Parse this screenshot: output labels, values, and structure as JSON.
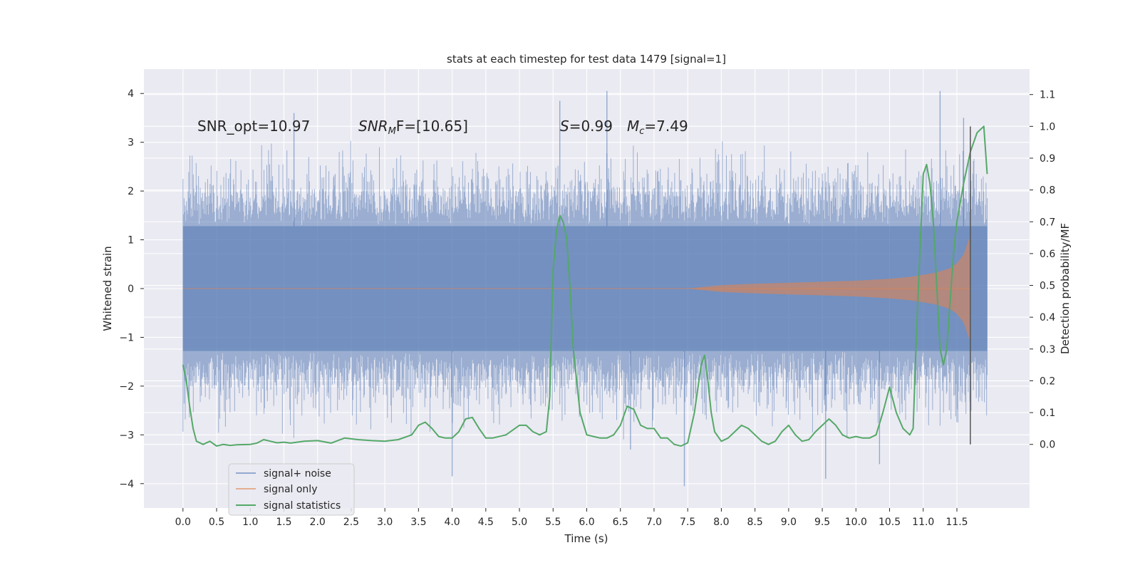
{
  "chart_data": {
    "type": "line",
    "title": "stats at each timestep for test data 1479 [signal=1]",
    "xlabel": "Time (s)",
    "ylabel": "Whitened strain",
    "ylabel_right": "Detection probability/MF",
    "xlim": [
      -0.58,
      12.58
    ],
    "ylim": [
      -4.5,
      4.5
    ],
    "ylim_right": [
      -0.2,
      1.18
    ],
    "x_ticks": [
      0.0,
      0.5,
      1.0,
      1.5,
      2.0,
      2.5,
      3.0,
      3.5,
      4.0,
      4.5,
      5.0,
      5.5,
      6.0,
      6.5,
      7.0,
      7.5,
      8.0,
      8.5,
      9.0,
      9.5,
      10.0,
      10.5,
      11.0,
      11.5
    ],
    "x_tick_labels": [
      "0.0",
      "0.5",
      "1.0",
      "1.5",
      "2.0",
      "2.5",
      "3.0",
      "3.5",
      "4.0",
      "4.5",
      "5.0",
      "5.5",
      "6.0",
      "6.5",
      "7.0",
      "7.5",
      "8.0",
      "8.5",
      "9.0",
      "9.5",
      "10.0",
      "10.5",
      "11.0",
      "11.5"
    ],
    "y_ticks": [
      -4,
      -3,
      -2,
      -1,
      0,
      1,
      2,
      3,
      4
    ],
    "y_tick_labels": [
      "−4",
      "−3",
      "−2",
      "−1",
      "0",
      "1",
      "2",
      "3",
      "4"
    ],
    "y_ticks_right": [
      0.0,
      0.1,
      0.2,
      0.3,
      0.4,
      0.5,
      0.6,
      0.7,
      0.8,
      0.9,
      1.0,
      1.1
    ],
    "y_tick_labels_right": [
      "0.0",
      "0.1",
      "0.2",
      "0.3",
      "0.4",
      "0.5",
      "0.6",
      "0.7",
      "0.8",
      "0.9",
      "1.0",
      "1.1"
    ],
    "grid": true,
    "legend_position": "lower-left",
    "annotations": {
      "snr_opt": "SNR_opt=10.97",
      "snr_mf_symbol": "SNR",
      "snr_mf_sub": "M",
      "snr_mf_rest": "F=[10.65]",
      "s_symbol": "S",
      "s_value": "=0.99",
      "mc_symbol": "M",
      "mc_sub": "c",
      "mc_value": "=7.49"
    },
    "series": [
      {
        "name": "signal+ noise",
        "color": "#4c72b0",
        "x_range": [
          0.0,
          11.95
        ],
        "envelope": {
          "core": 1.28,
          "typical_max": 2.2,
          "typical_min": -2.2,
          "peaks": [
            {
              "x": 5.6,
              "y": 3.85
            },
            {
              "x": 6.3,
              "y": 4.05
            },
            {
              "x": 11.25,
              "y": 4.05
            },
            {
              "x": 1.65,
              "y": 3.6
            },
            {
              "x": 11.6,
              "y": 3.5
            },
            {
              "x": 4.0,
              "y": -3.85
            },
            {
              "x": 7.45,
              "y": -4.05
            },
            {
              "x": 9.55,
              "y": -3.9
            },
            {
              "x": 6.65,
              "y": -3.3
            },
            {
              "x": 10.35,
              "y": -3.6
            }
          ]
        }
      },
      {
        "name": "signal only",
        "color": "#dd8452",
        "x": [
          0.0,
          7.5,
          8.0,
          8.5,
          9.0,
          9.5,
          10.0,
          10.5,
          10.8,
          11.0,
          11.2,
          11.4,
          11.5,
          11.6,
          11.65,
          11.7
        ],
        "amplitude": [
          0.0,
          0.0,
          0.07,
          0.1,
          0.12,
          0.14,
          0.16,
          0.2,
          0.24,
          0.28,
          0.33,
          0.42,
          0.52,
          0.7,
          0.9,
          1.1
        ]
      },
      {
        "name": "signal statistics",
        "color": "#55a868",
        "x": [
          0.0,
          0.05,
          0.1,
          0.15,
          0.2,
          0.3,
          0.4,
          0.5,
          0.6,
          0.7,
          0.8,
          1.0,
          1.1,
          1.2,
          1.3,
          1.4,
          1.5,
          1.6,
          1.8,
          2.0,
          2.2,
          2.4,
          2.6,
          2.8,
          3.0,
          3.2,
          3.4,
          3.5,
          3.6,
          3.7,
          3.8,
          3.9,
          4.0,
          4.1,
          4.2,
          4.3,
          4.4,
          4.5,
          4.6,
          4.8,
          5.0,
          5.1,
          5.2,
          5.3,
          5.4,
          5.45,
          5.5,
          5.55,
          5.6,
          5.65,
          5.7,
          5.75,
          5.8,
          5.9,
          6.0,
          6.1,
          6.2,
          6.3,
          6.4,
          6.5,
          6.6,
          6.7,
          6.8,
          6.9,
          7.0,
          7.1,
          7.2,
          7.3,
          7.4,
          7.5,
          7.6,
          7.7,
          7.75,
          7.8,
          7.85,
          7.9,
          8.0,
          8.1,
          8.2,
          8.3,
          8.4,
          8.5,
          8.6,
          8.7,
          8.8,
          8.9,
          9.0,
          9.1,
          9.2,
          9.3,
          9.4,
          9.5,
          9.6,
          9.7,
          9.8,
          9.9,
          10.0,
          10.1,
          10.2,
          10.3,
          10.4,
          10.5,
          10.6,
          10.7,
          10.8,
          10.85,
          10.9,
          10.95,
          11.0,
          11.05,
          11.1,
          11.15,
          11.2,
          11.25,
          11.3,
          11.35,
          11.4,
          11.45,
          11.5,
          11.6,
          11.7,
          11.75,
          11.8,
          11.85,
          11.9,
          11.95
        ],
        "values": [
          0.25,
          0.2,
          0.12,
          0.05,
          0.01,
          0.0,
          0.01,
          -0.005,
          0.0,
          -0.003,
          -0.001,
          0.0,
          0.004,
          0.015,
          0.01,
          0.005,
          0.007,
          0.004,
          0.01,
          0.012,
          0.004,
          0.02,
          0.015,
          0.012,
          0.01,
          0.015,
          0.03,
          0.06,
          0.07,
          0.05,
          0.025,
          0.02,
          0.02,
          0.04,
          0.08,
          0.085,
          0.05,
          0.02,
          0.02,
          0.03,
          0.06,
          0.06,
          0.04,
          0.03,
          0.04,
          0.15,
          0.55,
          0.67,
          0.72,
          0.7,
          0.65,
          0.5,
          0.3,
          0.1,
          0.03,
          0.025,
          0.02,
          0.02,
          0.03,
          0.06,
          0.12,
          0.11,
          0.06,
          0.05,
          0.05,
          0.02,
          0.02,
          0.0,
          -0.005,
          0.005,
          0.1,
          0.25,
          0.28,
          0.2,
          0.1,
          0.04,
          0.01,
          0.02,
          0.04,
          0.06,
          0.05,
          0.03,
          0.01,
          0.0,
          0.01,
          0.04,
          0.06,
          0.03,
          0.01,
          0.015,
          0.04,
          0.06,
          0.08,
          0.06,
          0.03,
          0.02,
          0.025,
          0.02,
          0.02,
          0.03,
          0.1,
          0.18,
          0.1,
          0.05,
          0.03,
          0.05,
          0.35,
          0.6,
          0.85,
          0.88,
          0.82,
          0.7,
          0.5,
          0.3,
          0.25,
          0.3,
          0.45,
          0.6,
          0.7,
          0.82,
          0.92,
          0.95,
          0.98,
          0.99,
          1.0,
          0.85
        ]
      }
    ],
    "vertical_line": {
      "x": 11.7,
      "y_range_right": [
        0.0,
        1.0
      ],
      "color": "#555555"
    }
  }
}
